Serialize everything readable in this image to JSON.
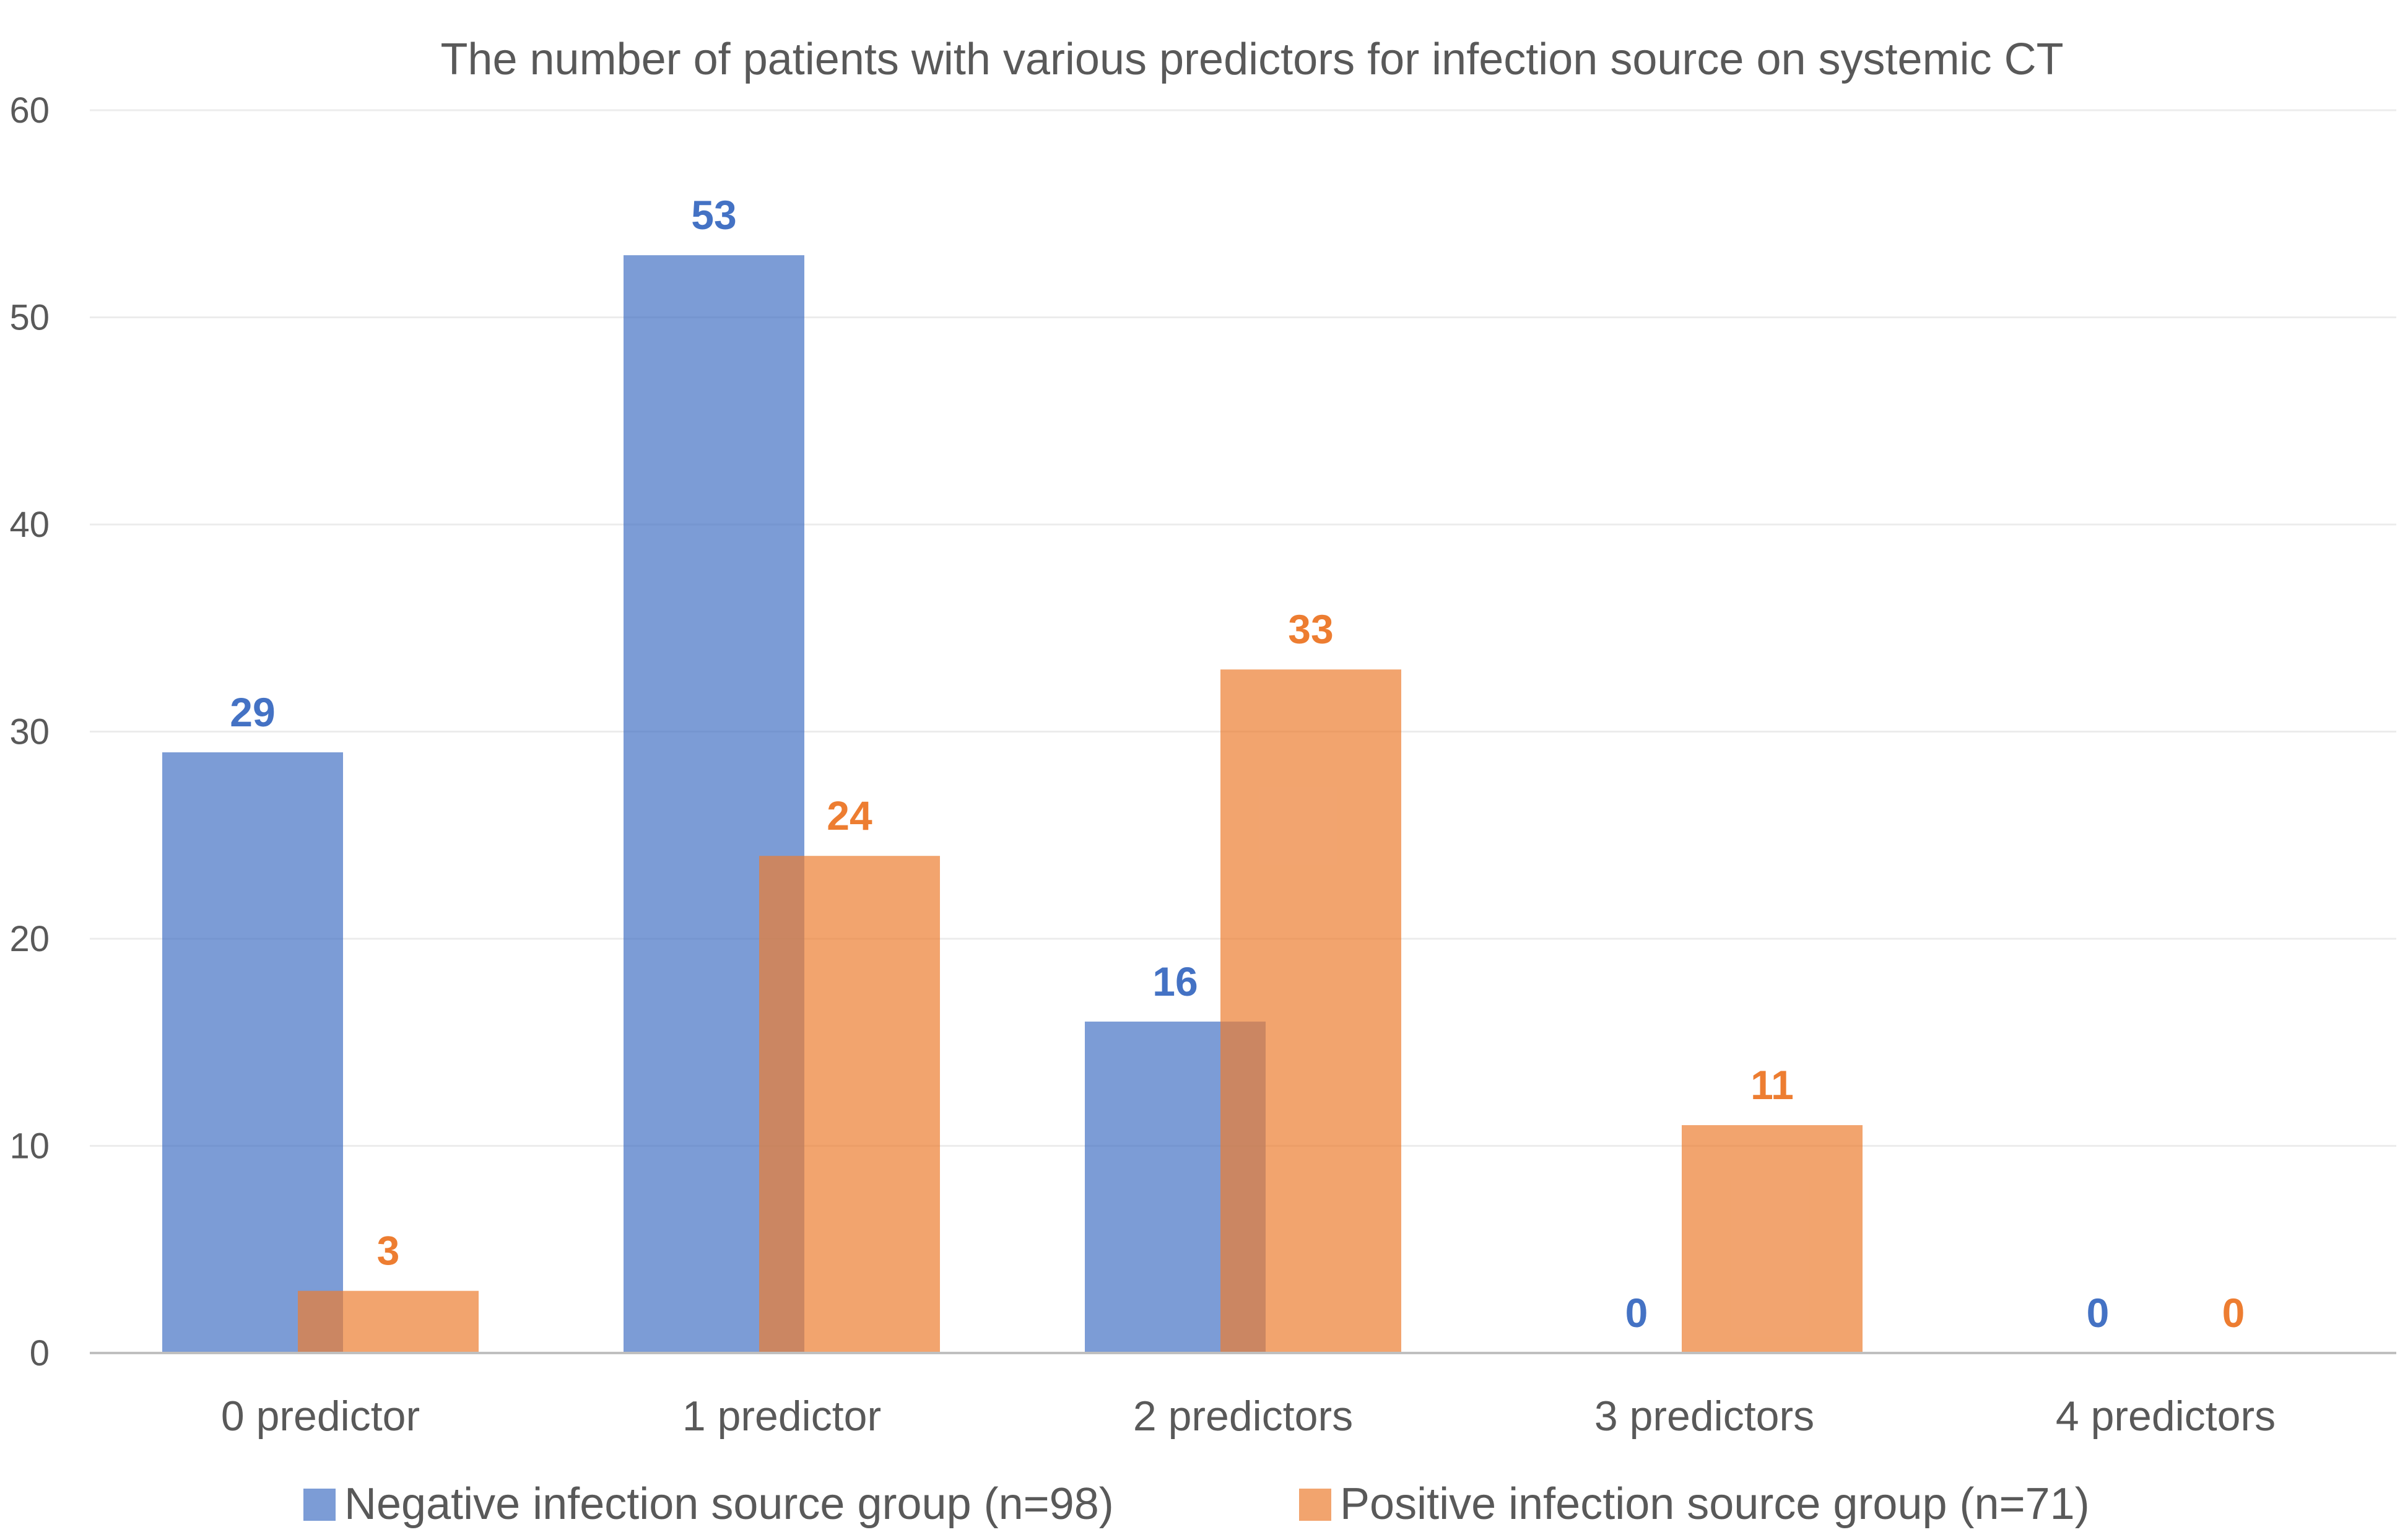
{
  "chart_data": {
    "type": "bar",
    "title": "The number of patients with various predictors for infection source on systemic CT",
    "categories": [
      "0 predictor",
      "1 predictor",
      "2 predictors",
      "3 predictors",
      "4 predictors"
    ],
    "series": [
      {
        "name": "Negative infection source group (n=98)",
        "values": [
          29,
          53,
          16,
          0,
          0
        ],
        "color": "#4472C4"
      },
      {
        "name": "Positive infection source group (n=71)",
        "values": [
          3,
          24,
          33,
          11,
          0
        ],
        "color": "#ED7D31"
      }
    ],
    "ylim": [
      0,
      60
    ],
    "yticks": [
      0,
      10,
      20,
      30,
      40,
      50,
      60
    ],
    "grid": true,
    "legend": "bottom",
    "data_labels": true
  }
}
